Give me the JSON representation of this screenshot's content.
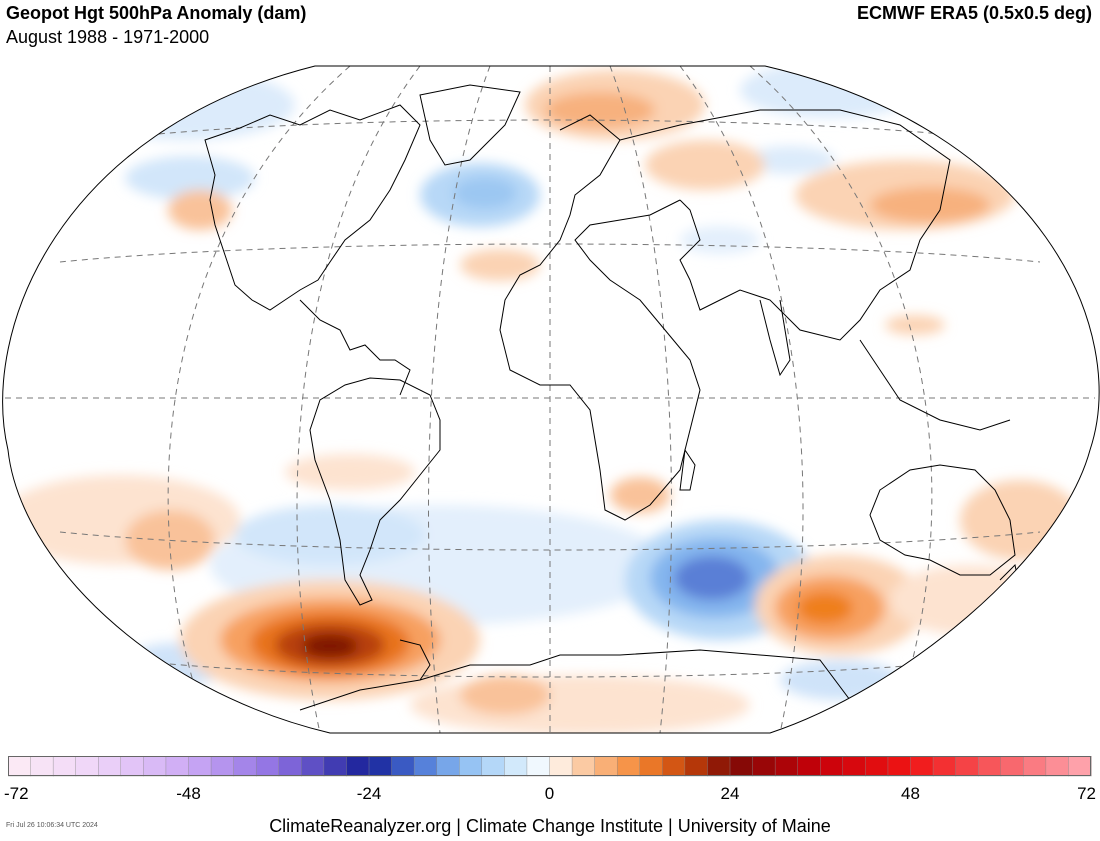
{
  "header": {
    "title": "Geopot Hgt 500hPa Anomaly (dam)",
    "subtitle": "August 1988 - 1971-2000",
    "source": "ECMWF ERA5 (0.5x0.5 deg)"
  },
  "colorbar": {
    "min": -72,
    "max": 72,
    "step": 3,
    "tick_labels": [
      "-72",
      "-48",
      "-24",
      "0",
      "24",
      "48",
      "72"
    ]
  },
  "footer": {
    "credit": "ClimateReanalyzer.org | Climate Change Institute | University of Maine",
    "timestamp": "Fri Jul 26 10:06:34 UTC 2024"
  }
}
